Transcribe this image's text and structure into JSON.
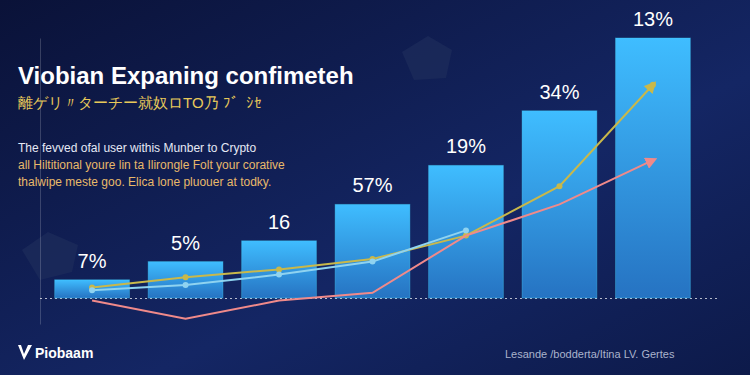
{
  "chart_data": {
    "type": "bar",
    "title": "Viobian Expaning confimeteh",
    "subtitle": "離ゲリ〃ターチー就奴ロTO乃 ﾌ゛ｼｾ",
    "description": [
      "The fevved ofal user withis Munber to Crypto",
      "all Hiltitional youre lin ta Ilirongle Folt your corative",
      "thalwipe meste goo. Elica lone pluouer at todky."
    ],
    "logo": "Piobaam",
    "footer": "Lesande /bodderta/Itina LV. Gertes",
    "categories": [
      null,
      null,
      null,
      null,
      null,
      null,
      null
    ],
    "values": [
      7,
      14,
      22,
      36,
      51,
      72,
      100
    ],
    "annotations": [
      "7%",
      "5%",
      "16",
      "57%",
      "19%",
      "34%",
      "13%"
    ],
    "color": "#2f8ef0",
    "series": [
      {
        "type": "line",
        "color": "#c9b84a",
        "marker": "circle",
        "line_style": "arrow",
        "values": [
          4,
          8,
          11,
          15,
          24,
          43,
          82
        ]
      },
      {
        "type": "line",
        "color": "#8fd3f0",
        "marker": "circle",
        "line_style": "solid",
        "values": [
          3,
          5,
          9,
          14,
          26,
          null,
          null
        ]
      },
      {
        "type": "line",
        "color": "#f08a8a",
        "line_style": "arrow",
        "values": [
          -1,
          -8,
          -1,
          2,
          24,
          36,
          53
        ]
      }
    ],
    "ylim": [
      -10,
      100
    ],
    "yticks": [
      0
    ],
    "grid": true,
    "tick_labels": false
  }
}
